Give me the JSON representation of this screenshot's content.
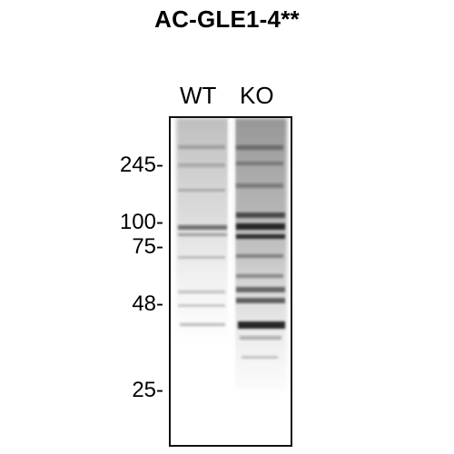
{
  "figure": {
    "title": "AC-GLE1-4**",
    "lanes": [
      "WT",
      "KO"
    ],
    "markers": [
      "245-",
      "100-",
      "75-",
      "48-",
      "25-"
    ]
  },
  "colors": {
    "background": "#ffffff",
    "frame": "#111111",
    "band": "#1a1a1a"
  }
}
